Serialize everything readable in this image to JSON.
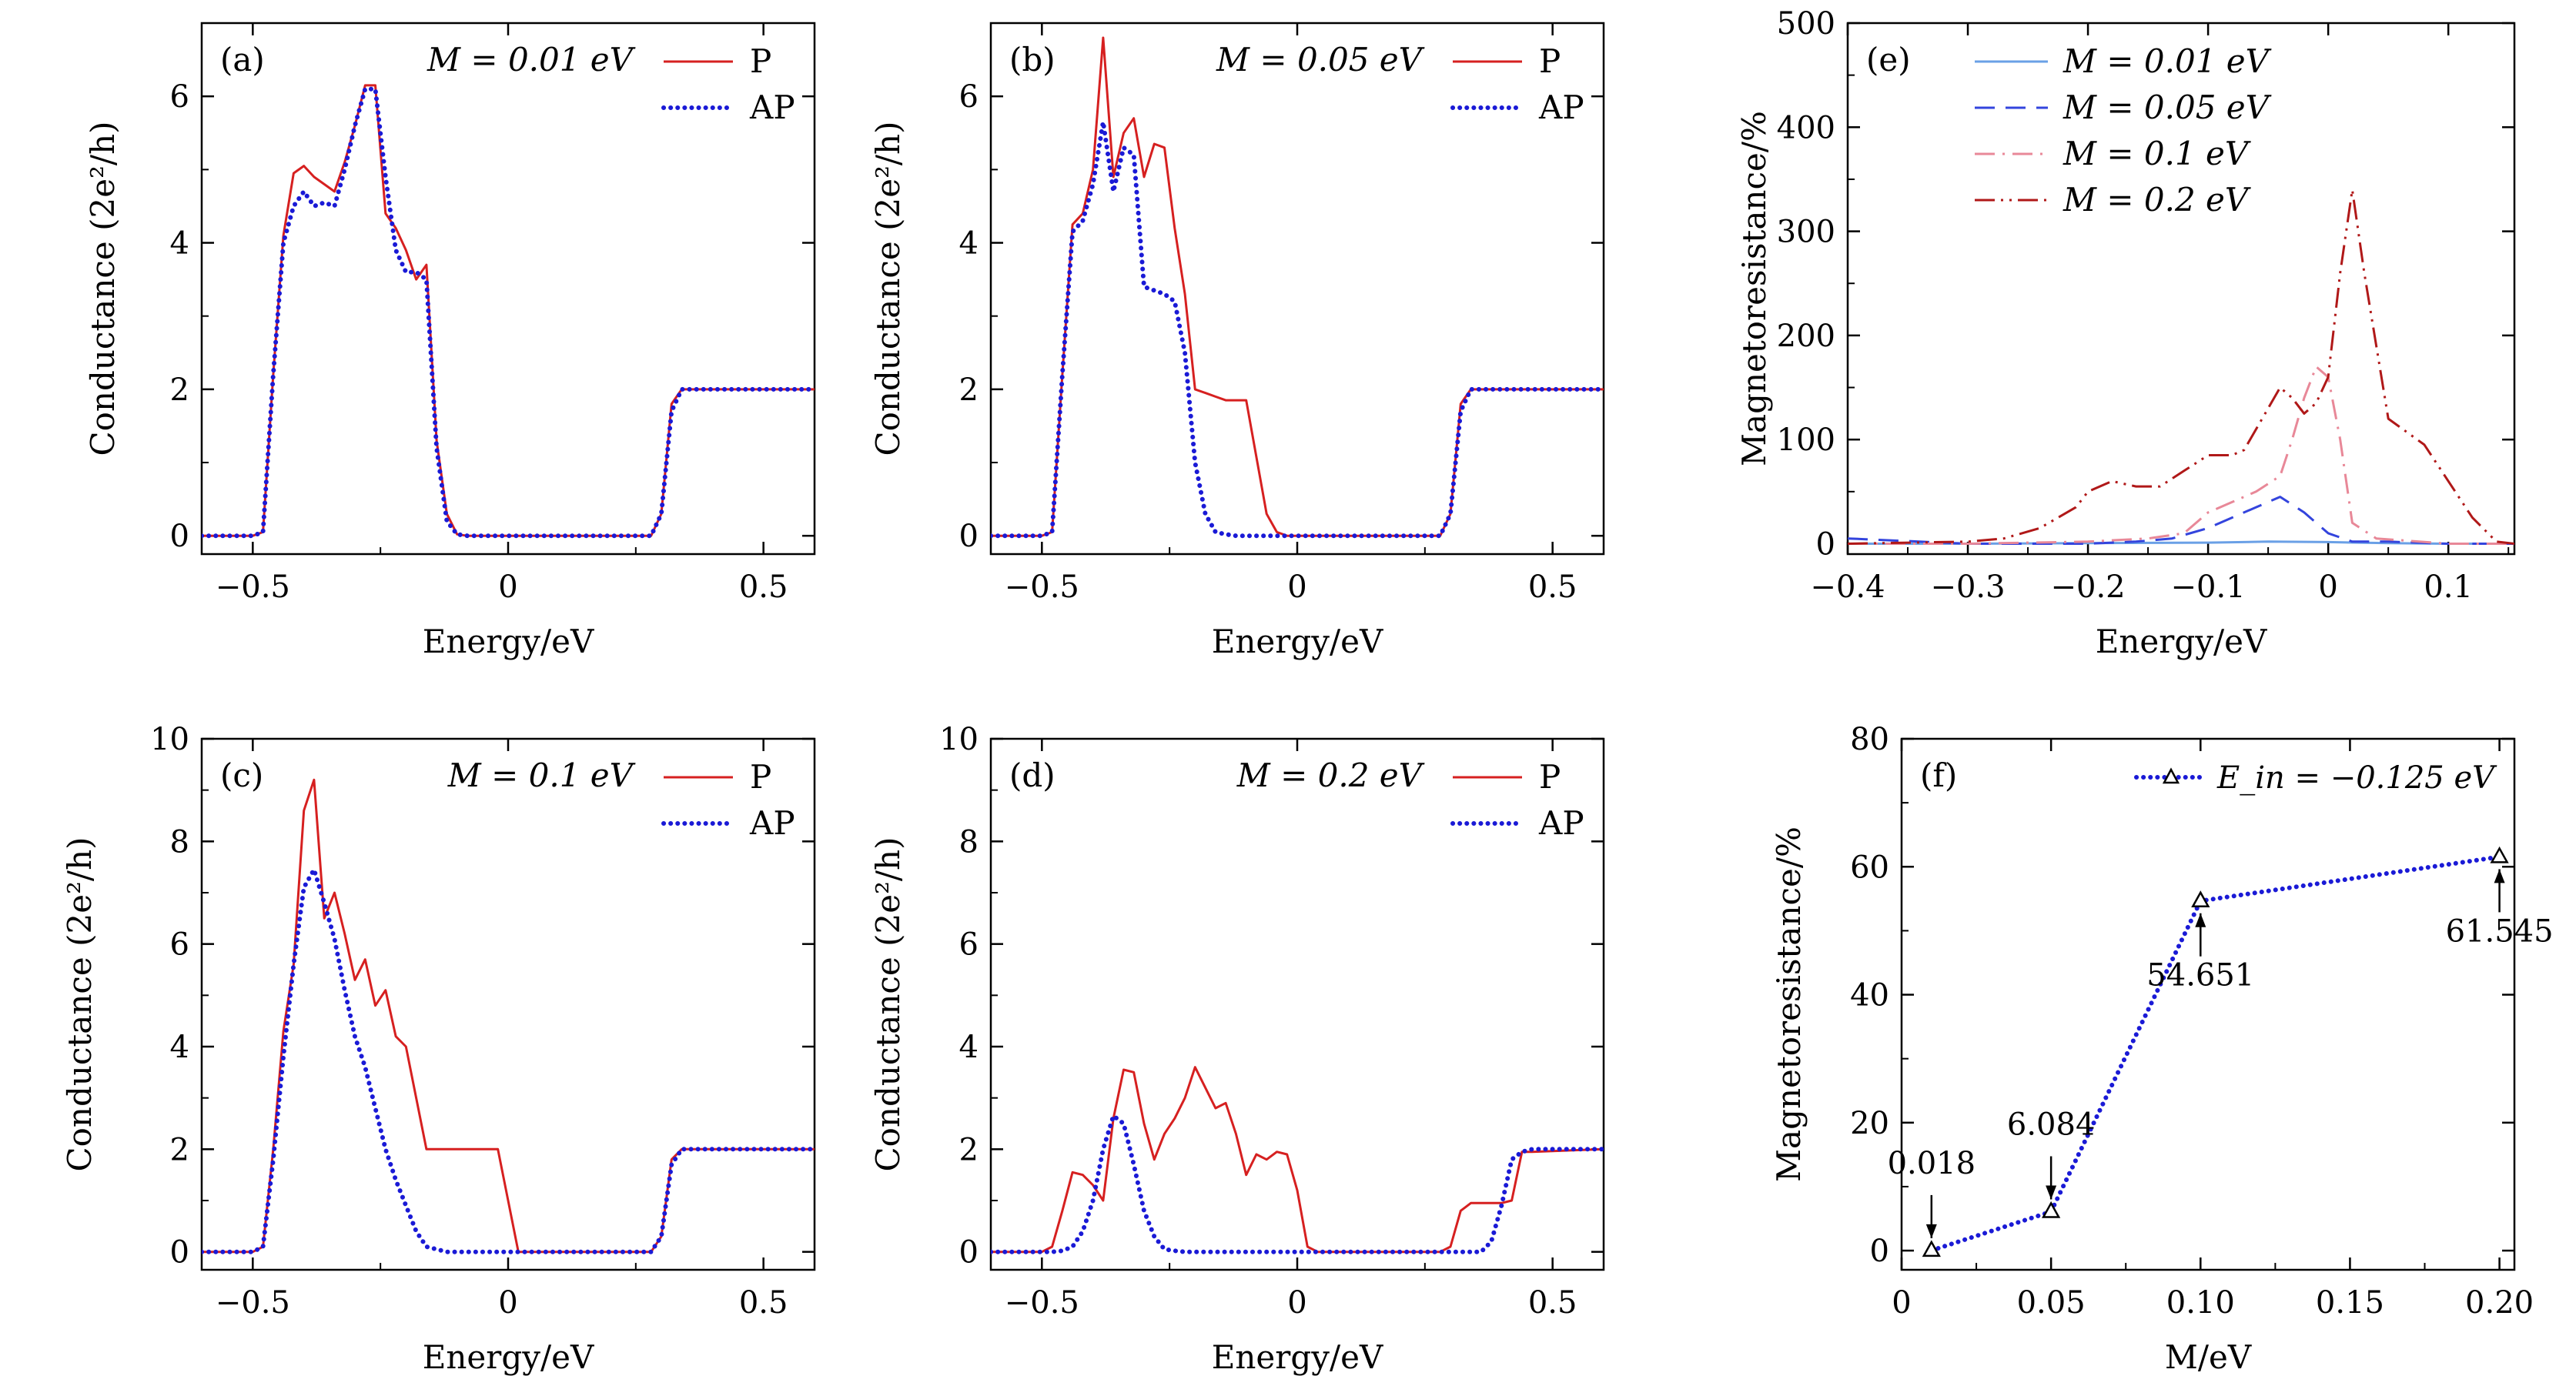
{
  "colors": {
    "p": "#d62020",
    "ap": "#1a1ad6",
    "e1": "#6aa0e6",
    "e2": "#3344dd",
    "e3": "#e88898",
    "e4": "#b01818",
    "f": "#1a1ad6"
  },
  "chart_data": [
    {
      "id": "a",
      "type": "line",
      "panel_label": "(a)",
      "annotation": "M = 0.01 eV",
      "xlabel": "Energy/eV",
      "ylabel": "Conductance (2e²/h)",
      "xlim": [
        -0.6,
        0.6
      ],
      "ylim": [
        -0.25,
        7.0
      ],
      "xticks": [
        -0.5,
        0,
        0.5
      ],
      "xtick_labels": [
        "−0.5",
        "0",
        "0.5"
      ],
      "yticks": [
        0,
        2,
        4,
        6
      ],
      "ytick_labels": [
        "0",
        "2",
        "4",
        "6"
      ],
      "legend_position": "top-right",
      "series": [
        {
          "name": "P",
          "style": "solid",
          "color_key": "p",
          "x": [
            -0.6,
            -0.5,
            -0.48,
            -0.46,
            -0.44,
            -0.42,
            -0.4,
            -0.38,
            -0.36,
            -0.34,
            -0.32,
            -0.3,
            -0.28,
            -0.26,
            -0.24,
            -0.22,
            -0.2,
            -0.18,
            -0.16,
            -0.14,
            -0.12,
            -0.1,
            -0.08,
            -0.06,
            0.28,
            0.3,
            0.32,
            0.34,
            0.36,
            0.6
          ],
          "y": [
            0,
            0,
            0.05,
            2.2,
            4.1,
            4.95,
            5.05,
            4.9,
            4.8,
            4.7,
            5.1,
            5.6,
            6.15,
            6.15,
            4.4,
            4.2,
            3.9,
            3.5,
            3.7,
            1.3,
            0.3,
            0.02,
            0,
            0,
            0,
            0.3,
            1.8,
            2.0,
            2.0,
            2.0
          ]
        },
        {
          "name": "AP",
          "style": "dotted",
          "color_key": "ap",
          "x": [
            -0.6,
            -0.5,
            -0.48,
            -0.46,
            -0.44,
            -0.42,
            -0.4,
            -0.38,
            -0.36,
            -0.34,
            -0.32,
            -0.3,
            -0.28,
            -0.26,
            -0.24,
            -0.22,
            -0.2,
            -0.18,
            -0.16,
            -0.14,
            -0.12,
            -0.1,
            -0.08,
            -0.06,
            0.28,
            0.3,
            0.32,
            0.34,
            0.36,
            0.6
          ],
          "y": [
            0,
            0,
            0.05,
            2.2,
            4.0,
            4.5,
            4.7,
            4.5,
            4.55,
            4.5,
            5.0,
            5.6,
            6.1,
            6.1,
            4.9,
            3.9,
            3.6,
            3.6,
            3.5,
            1.2,
            0.2,
            0.02,
            0,
            0,
            0,
            0.3,
            1.7,
            2.0,
            2.0,
            2.0
          ]
        }
      ]
    },
    {
      "id": "b",
      "type": "line",
      "panel_label": "(b)",
      "annotation": "M = 0.05 eV",
      "xlabel": "Energy/eV",
      "ylabel": "Conductance (2e²/h)",
      "xlim": [
        -0.6,
        0.6
      ],
      "ylim": [
        -0.25,
        7.0
      ],
      "xticks": [
        -0.5,
        0,
        0.5
      ],
      "xtick_labels": [
        "−0.5",
        "0",
        "0.5"
      ],
      "yticks": [
        0,
        2,
        4,
        6
      ],
      "ytick_labels": [
        "0",
        "2",
        "4",
        "6"
      ],
      "legend_position": "top-right",
      "series": [
        {
          "name": "P",
          "style": "solid",
          "color_key": "p",
          "x": [
            -0.6,
            -0.5,
            -0.48,
            -0.46,
            -0.44,
            -0.42,
            -0.4,
            -0.38,
            -0.36,
            -0.34,
            -0.32,
            -0.3,
            -0.28,
            -0.26,
            -0.24,
            -0.22,
            -0.2,
            -0.18,
            -0.16,
            -0.14,
            -0.12,
            -0.1,
            -0.06,
            -0.04,
            -0.02,
            0.28,
            0.3,
            0.32,
            0.34,
            0.36,
            0.6
          ],
          "y": [
            0,
            0,
            0.05,
            2.2,
            4.25,
            4.4,
            5.0,
            6.8,
            4.9,
            5.5,
            5.7,
            4.9,
            5.35,
            5.3,
            4.2,
            3.3,
            2.0,
            1.95,
            1.9,
            1.85,
            1.85,
            1.85,
            0.3,
            0.05,
            0,
            0,
            0.3,
            1.8,
            2.0,
            2.0,
            2.0
          ]
        },
        {
          "name": "AP",
          "style": "dotted",
          "color_key": "ap",
          "x": [
            -0.6,
            -0.5,
            -0.48,
            -0.46,
            -0.44,
            -0.42,
            -0.4,
            -0.38,
            -0.36,
            -0.34,
            -0.32,
            -0.3,
            -0.28,
            -0.26,
            -0.24,
            -0.22,
            -0.2,
            -0.18,
            -0.16,
            -0.14,
            -0.12,
            -0.1,
            -0.08,
            0.28,
            0.3,
            0.32,
            0.34,
            0.36,
            0.6
          ],
          "y": [
            0,
            0,
            0.05,
            2.2,
            4.15,
            4.3,
            4.8,
            5.65,
            4.7,
            5.3,
            5.2,
            3.4,
            3.35,
            3.3,
            3.2,
            2.5,
            1.0,
            0.3,
            0.05,
            0.02,
            0,
            0,
            0,
            0,
            0.3,
            1.7,
            2.0,
            2.0,
            2.0
          ]
        }
      ]
    },
    {
      "id": "c",
      "type": "line",
      "panel_label": "(c)",
      "annotation": "M = 0.1 eV",
      "xlabel": "Energy/eV",
      "ylabel": "Conductance (2e²/h)",
      "xlim": [
        -0.6,
        0.6
      ],
      "ylim": [
        -0.35,
        10.0
      ],
      "xticks": [
        -0.5,
        0,
        0.5
      ],
      "xtick_labels": [
        "−0.5",
        "0",
        "0.5"
      ],
      "yticks": [
        0,
        2,
        4,
        6,
        8,
        10
      ],
      "ytick_labels": [
        "0",
        "2",
        "4",
        "6",
        "8",
        "10"
      ],
      "legend_position": "top-right",
      "series": [
        {
          "name": "P",
          "style": "solid",
          "color_key": "p",
          "x": [
            -0.6,
            -0.5,
            -0.48,
            -0.46,
            -0.44,
            -0.42,
            -0.4,
            -0.38,
            -0.36,
            -0.34,
            -0.32,
            -0.3,
            -0.28,
            -0.26,
            -0.24,
            -0.22,
            -0.2,
            -0.18,
            -0.16,
            -0.14,
            -0.12,
            -0.1,
            -0.08,
            -0.06,
            -0.04,
            -0.02,
            0.0,
            0.02,
            0.28,
            0.3,
            0.32,
            0.34,
            0.36,
            0.6
          ],
          "y": [
            0,
            0,
            0.1,
            2.0,
            4.3,
            5.6,
            8.6,
            9.2,
            6.5,
            7.0,
            6.2,
            5.3,
            5.7,
            4.8,
            5.1,
            4.2,
            4.0,
            3.0,
            2.0,
            2.0,
            2.0,
            2.0,
            2.0,
            2.0,
            2.0,
            2.0,
            1.0,
            0,
            0,
            0.3,
            1.8,
            2.0,
            2.0,
            2.0
          ]
        },
        {
          "name": "AP",
          "style": "dotted",
          "color_key": "ap",
          "x": [
            -0.6,
            -0.5,
            -0.48,
            -0.46,
            -0.44,
            -0.42,
            -0.4,
            -0.38,
            -0.36,
            -0.34,
            -0.32,
            -0.3,
            -0.28,
            -0.26,
            -0.24,
            -0.22,
            -0.2,
            -0.18,
            -0.16,
            -0.14,
            -0.12,
            -0.1,
            -0.08,
            0.28,
            0.3,
            0.32,
            0.34,
            0.36,
            0.6
          ],
          "y": [
            0,
            0,
            0.1,
            1.8,
            3.8,
            5.6,
            7.1,
            7.45,
            6.8,
            6.1,
            5.1,
            4.2,
            3.6,
            2.8,
            2.0,
            1.4,
            0.9,
            0.4,
            0.1,
            0.05,
            0,
            0,
            0,
            0,
            0.3,
            1.7,
            2.0,
            2.0,
            2.0
          ]
        }
      ]
    },
    {
      "id": "d",
      "type": "line",
      "panel_label": "(d)",
      "annotation": "M = 0.2 eV",
      "xlabel": "Energy/eV",
      "ylabel": "Conductance (2e²/h)",
      "xlim": [
        -0.6,
        0.6
      ],
      "ylim": [
        -0.35,
        10.0
      ],
      "xticks": [
        -0.5,
        0,
        0.5
      ],
      "xtick_labels": [
        "−0.5",
        "0",
        "0.5"
      ],
      "yticks": [
        0,
        2,
        4,
        6,
        8,
        10
      ],
      "ytick_labels": [
        "0",
        "2",
        "4",
        "6",
        "8",
        "10"
      ],
      "legend_position": "top-right",
      "series": [
        {
          "name": "P",
          "style": "solid",
          "color_key": "p",
          "x": [
            -0.6,
            -0.5,
            -0.48,
            -0.46,
            -0.44,
            -0.42,
            -0.4,
            -0.38,
            -0.36,
            -0.34,
            -0.32,
            -0.3,
            -0.28,
            -0.26,
            -0.24,
            -0.22,
            -0.2,
            -0.18,
            -0.16,
            -0.14,
            -0.12,
            -0.1,
            -0.08,
            -0.06,
            -0.04,
            -0.02,
            0.0,
            0.02,
            0.04,
            0.28,
            0.3,
            0.32,
            0.34,
            0.36,
            0.38,
            0.4,
            0.42,
            0.44,
            0.46,
            0.6
          ],
          "y": [
            0,
            0,
            0.1,
            0.8,
            1.55,
            1.5,
            1.3,
            1.0,
            2.6,
            3.55,
            3.5,
            2.5,
            1.8,
            2.3,
            2.6,
            3.0,
            3.6,
            3.2,
            2.8,
            2.9,
            2.3,
            1.5,
            1.9,
            1.8,
            1.95,
            1.9,
            1.2,
            0.1,
            0,
            0,
            0.1,
            0.8,
            0.95,
            0.95,
            0.95,
            0.95,
            1.0,
            1.95,
            1.95,
            2.0
          ]
        },
        {
          "name": "AP",
          "style": "dotted",
          "color_key": "ap",
          "x": [
            -0.6,
            -0.5,
            -0.48,
            -0.46,
            -0.44,
            -0.42,
            -0.4,
            -0.38,
            -0.36,
            -0.34,
            -0.32,
            -0.3,
            -0.28,
            -0.26,
            -0.24,
            -0.22,
            -0.2,
            0.36,
            0.38,
            0.4,
            0.42,
            0.44,
            0.46,
            0.6
          ],
          "y": [
            0,
            0,
            0,
            0.02,
            0.1,
            0.4,
            1.0,
            2.0,
            2.65,
            2.5,
            1.7,
            0.8,
            0.3,
            0.05,
            0.02,
            0,
            0,
            0,
            0.2,
            0.9,
            1.8,
            1.95,
            2.0,
            2.0
          ]
        }
      ]
    },
    {
      "id": "e",
      "type": "line",
      "panel_label": "(e)",
      "xlabel": "Energy/eV",
      "ylabel": "Magnetoresistance/%",
      "xlim": [
        -0.4,
        0.155
      ],
      "ylim": [
        -10,
        500
      ],
      "xticks": [
        -0.4,
        -0.3,
        -0.2,
        -0.1,
        0,
        0.1
      ],
      "xtick_labels": [
        "−0.4",
        "−0.3",
        "−0.2",
        "−0.1",
        "0",
        "0.1"
      ],
      "yticks": [
        0,
        100,
        200,
        300,
        400,
        500
      ],
      "ytick_labels": [
        "0",
        "100",
        "200",
        "300",
        "400",
        "500"
      ],
      "legend_position": "top-right",
      "series": [
        {
          "name": "M = 0.01 eV",
          "style": "solid",
          "color_key": "e1",
          "x": [
            -0.4,
            -0.3,
            -0.2,
            -0.1,
            -0.05,
            0,
            0.05,
            0.1,
            0.155
          ],
          "y": [
            0,
            0,
            0.5,
            1,
            2,
            1.5,
            0.5,
            0,
            0
          ]
        },
        {
          "name": "M = 0.05 eV",
          "style": "dashed",
          "color_key": "e2",
          "x": [
            -0.4,
            -0.3,
            -0.2,
            -0.16,
            -0.13,
            -0.1,
            -0.08,
            -0.06,
            -0.04,
            -0.02,
            0.0,
            0.02,
            0.05,
            0.1,
            0.155
          ],
          "y": [
            5,
            0,
            0,
            2,
            5,
            15,
            25,
            35,
            45,
            30,
            10,
            2,
            2,
            0,
            0
          ]
        },
        {
          "name": "M = 0.1 eV",
          "style": "dashdot",
          "color_key": "e3",
          "x": [
            -0.4,
            -0.3,
            -0.2,
            -0.15,
            -0.12,
            -0.1,
            -0.08,
            -0.06,
            -0.04,
            -0.03,
            -0.02,
            -0.01,
            0.0,
            0.01,
            0.02,
            0.04,
            0.1,
            0.155
          ],
          "y": [
            0,
            0,
            2,
            5,
            10,
            30,
            40,
            50,
            65,
            100,
            140,
            170,
            160,
            100,
            20,
            5,
            0,
            0
          ]
        },
        {
          "name": "M = 0.2 eV",
          "style": "dashdotdot",
          "color_key": "e4",
          "x": [
            -0.4,
            -0.3,
            -0.27,
            -0.24,
            -0.21,
            -0.2,
            -0.18,
            -0.16,
            -0.14,
            -0.12,
            -0.1,
            -0.08,
            -0.07,
            -0.05,
            -0.04,
            -0.03,
            -0.02,
            -0.01,
            0.0,
            0.01,
            0.02,
            0.03,
            0.05,
            0.08,
            0.12,
            0.14,
            0.155
          ],
          "y": [
            0,
            2,
            5,
            15,
            35,
            50,
            60,
            55,
            55,
            70,
            85,
            85,
            90,
            130,
            150,
            140,
            125,
            135,
            160,
            260,
            340,
            260,
            120,
            95,
            25,
            2,
            0
          ]
        }
      ]
    },
    {
      "id": "f",
      "type": "line",
      "panel_label": "(f)",
      "xlabel": "M/eV",
      "ylabel": "Magnetoresistance/%",
      "xlim": [
        0,
        0.205
      ],
      "ylim": [
        -3,
        80
      ],
      "xticks": [
        0,
        0.05,
        0.1,
        0.15,
        0.2
      ],
      "xtick_labels": [
        "0",
        "0.05",
        "0.10",
        "0.15",
        "0.20"
      ],
      "yticks": [
        0,
        20,
        40,
        60,
        80
      ],
      "ytick_labels": [
        "0",
        "20",
        "40",
        "60",
        "80"
      ],
      "legend_position": "top-right",
      "series": [
        {
          "name": "E_in = −0.125 eV",
          "style": "dotted-markers",
          "marker": "triangle",
          "color_key": "f",
          "x": [
            0.01,
            0.05,
            0.1,
            0.2
          ],
          "y": [
            0.018,
            6.084,
            54.651,
            61.545
          ],
          "point_labels": [
            "0.018",
            "6.084",
            "54.651",
            "61.545"
          ]
        }
      ]
    }
  ]
}
